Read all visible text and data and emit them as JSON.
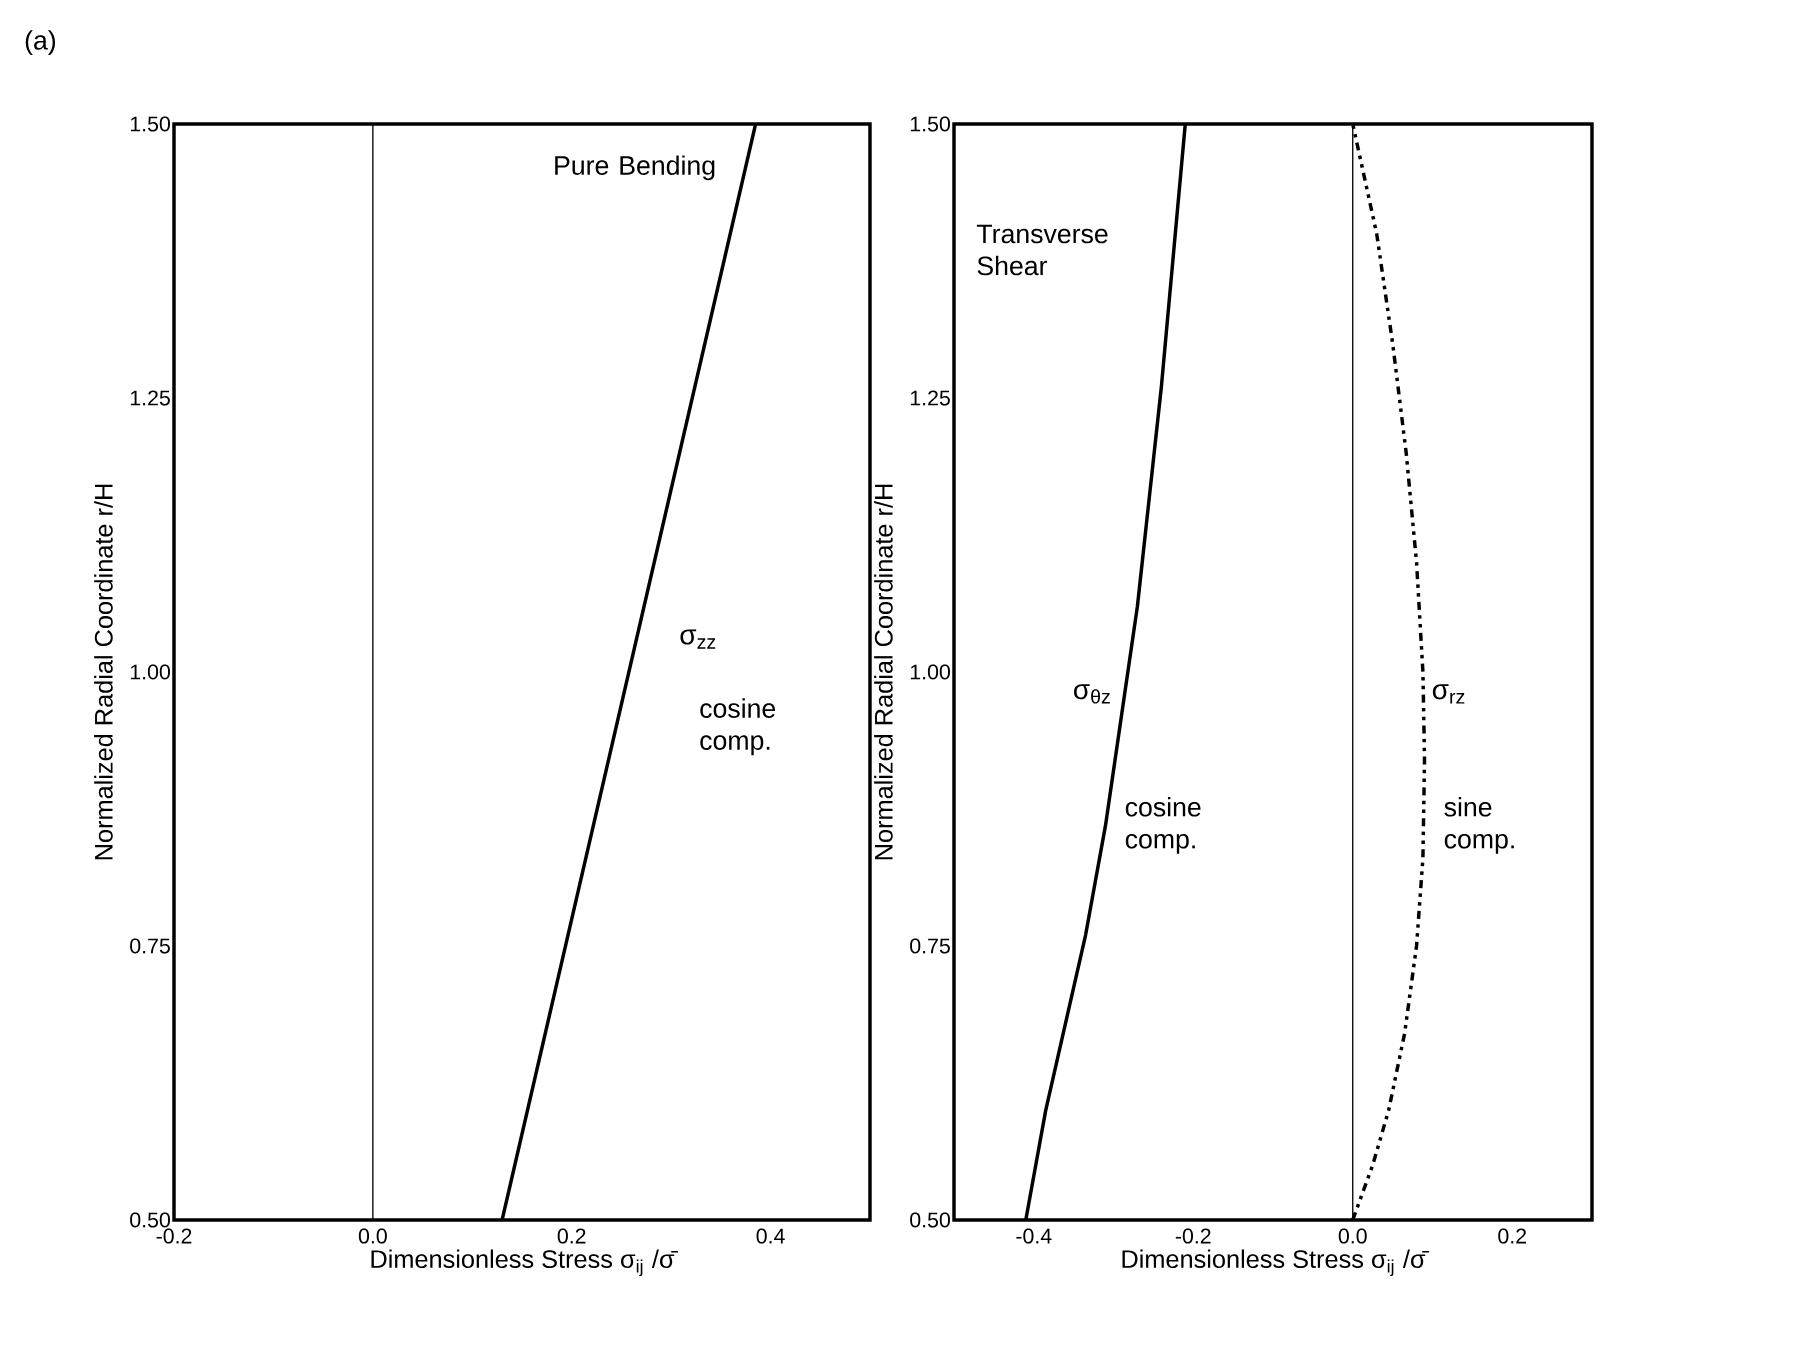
{
  "chart_data": [
    {
      "type": "line",
      "xlabel": "Dimensionless Stress σ$_{ij}$ /σ̄",
      "ylabel": "Normalized Radial Coordinate r/H",
      "xlim": [
        -0.2,
        0.5
      ],
      "ylim": [
        0.5,
        1.5
      ],
      "xticks": [
        -0.2,
        {
          "value": 0,
          "label": "0.0"
        },
        0.2,
        0.4
      ],
      "yticks": [
        {
          "value": 0.5,
          "label": "0.50"
        },
        {
          "value": 0.75,
          "label": "0.75"
        },
        {
          "value": 1.0,
          "label": "1.00"
        },
        {
          "value": 1.25,
          "label": "1.25"
        },
        {
          "value": 1.5,
          "label": "1.50"
        }
      ],
      "ref_lines": [
        {
          "axis": "x",
          "value": 0,
          "color": "#000000"
        }
      ],
      "annotations": [
        "(a)",
        "Pure Bending",
        "cosine comp."
      ],
      "series": [
        {
          "name": "σ$_{zz}$",
          "color": "#000000",
          "line_style": "solid",
          "x": [
            0.13,
            0.385
          ],
          "values": [
            0.5,
            1.5
          ]
        }
      ]
    },
    {
      "type": "line",
      "xlabel": "Dimensionless Stress σ$_{ij}$ /σ̄",
      "ylabel": "Normalized Radial Coordinate r/H",
      "xlim": [
        -0.5,
        0.3
      ],
      "ylim": [
        0.5,
        1.5
      ],
      "xticks": [
        -0.4,
        -0.2,
        {
          "value": 0,
          "label": "0.0"
        },
        0.2
      ],
      "yticks": [
        {
          "value": 0.5,
          "label": "0.50"
        },
        {
          "value": 0.75,
          "label": "0.75"
        },
        {
          "value": 1.0,
          "label": "1.00"
        },
        {
          "value": 1.25,
          "label": "1.25"
        },
        {
          "value": 1.5,
          "label": "1.50"
        }
      ],
      "ref_lines": [
        {
          "axis": "x",
          "value": 0,
          "color": "#000000"
        }
      ],
      "annotations": [
        "Transverse Shear",
        "cosine comp.",
        "sine comp."
      ],
      "series": [
        {
          "name": "σ$_{θz}$",
          "color": "#000000",
          "line_style": "solid",
          "x": [
            -0.41,
            -0.385,
            -0.36,
            -0.335,
            -0.31,
            -0.29,
            -0.27,
            -0.255,
            -0.24,
            -0.225,
            -0.21
          ],
          "values": [
            0.5,
            0.6,
            0.68,
            0.76,
            0.86,
            0.96,
            1.06,
            1.16,
            1.26,
            1.38,
            1.5
          ]
        },
        {
          "name": "σ$_{rz}$",
          "color": "#000000",
          "line_style": "dashdot",
          "x": [
            0,
            0.025,
            0.045,
            0.065,
            0.08,
            0.088,
            0.09,
            0.088,
            0.08,
            0.067,
            0.05,
            0.03,
            0
          ],
          "values": [
            0.5,
            0.55,
            0.6,
            0.67,
            0.75,
            0.83,
            0.92,
            1.0,
            1.1,
            1.2,
            1.3,
            1.4,
            1.5
          ]
        }
      ]
    }
  ]
}
